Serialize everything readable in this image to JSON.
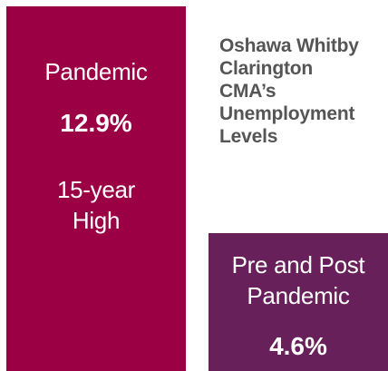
{
  "title": "Oshawa Whitby\nClarington\nCMA’s\nUnemployment\nLevels",
  "pandemic_card": {
    "label": "Pandemic",
    "value": "12.9%",
    "note": "15-year\nHigh",
    "color": "#9b0045"
  },
  "post_card": {
    "label": "Pre and Post\nPandemic",
    "value": "4.6%",
    "color": "#672059"
  }
}
